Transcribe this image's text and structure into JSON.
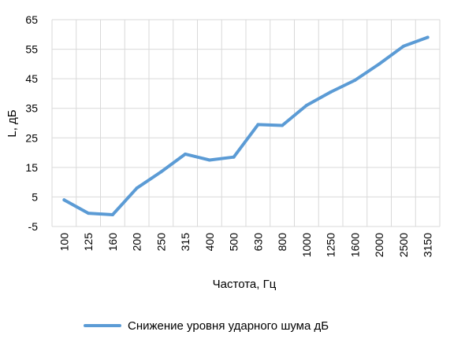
{
  "chart_data": {
    "type": "line",
    "title": "",
    "xlabel": "Частота, Гц",
    "ylabel": "L, дБ",
    "categories": [
      "100",
      "125",
      "160",
      "200",
      "250",
      "315",
      "400",
      "500",
      "630",
      "800",
      "1000",
      "1250",
      "1600",
      "2000",
      "2500",
      "3150"
    ],
    "ylim": [
      -5,
      65
    ],
    "yticks": [
      65,
      55,
      45,
      35,
      25,
      15,
      5,
      -5
    ],
    "grid": true,
    "legend": "bottom",
    "series": [
      {
        "name": "Снижение уровня ударного шума дБ",
        "color": "#5b9bd5",
        "values": [
          4,
          -0.5,
          -1,
          8,
          13.5,
          19.5,
          17.5,
          18.5,
          29.5,
          29.2,
          36,
          40.5,
          44.5,
          50,
          56,
          59
        ]
      }
    ]
  }
}
